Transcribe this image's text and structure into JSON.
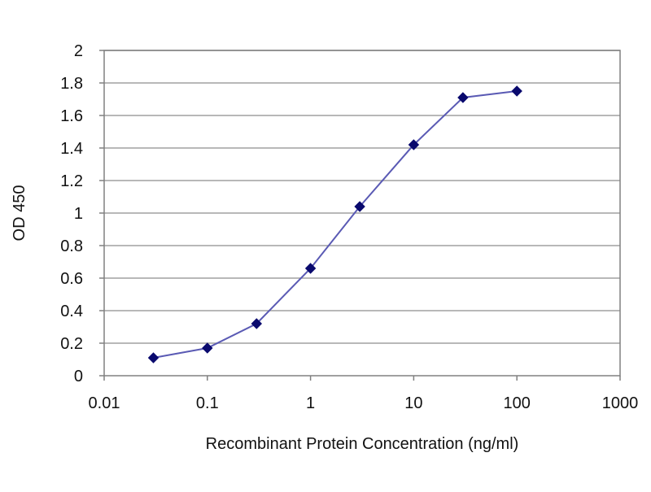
{
  "chart_data": {
    "type": "line",
    "x_scale": "log",
    "xlabel": "Recombinant Protein Concentration (ng/ml)",
    "ylabel": "OD 450",
    "xlim": [
      0.01,
      1000
    ],
    "ylim": [
      0,
      2
    ],
    "x_ticks": [
      "0.01",
      "0.1",
      "1",
      "10",
      "100",
      "1000"
    ],
    "y_ticks": [
      "0",
      "0.2",
      "0.4",
      "0.6",
      "0.8",
      "1",
      "1.2",
      "1.4",
      "1.6",
      "1.8",
      "2"
    ],
    "grid": "horizontal",
    "legend": "none",
    "series": [
      {
        "x": [
          0.03,
          0.1,
          0.3,
          1,
          3,
          10,
          30,
          100
        ],
        "y": [
          0.11,
          0.17,
          0.32,
          0.66,
          1.04,
          1.42,
          1.71,
          1.75
        ]
      }
    ],
    "colors": {
      "line": "#5a5ab4",
      "marker": "#0a0a6e",
      "grid": "#a0a0a0",
      "axis": "#808080"
    }
  }
}
